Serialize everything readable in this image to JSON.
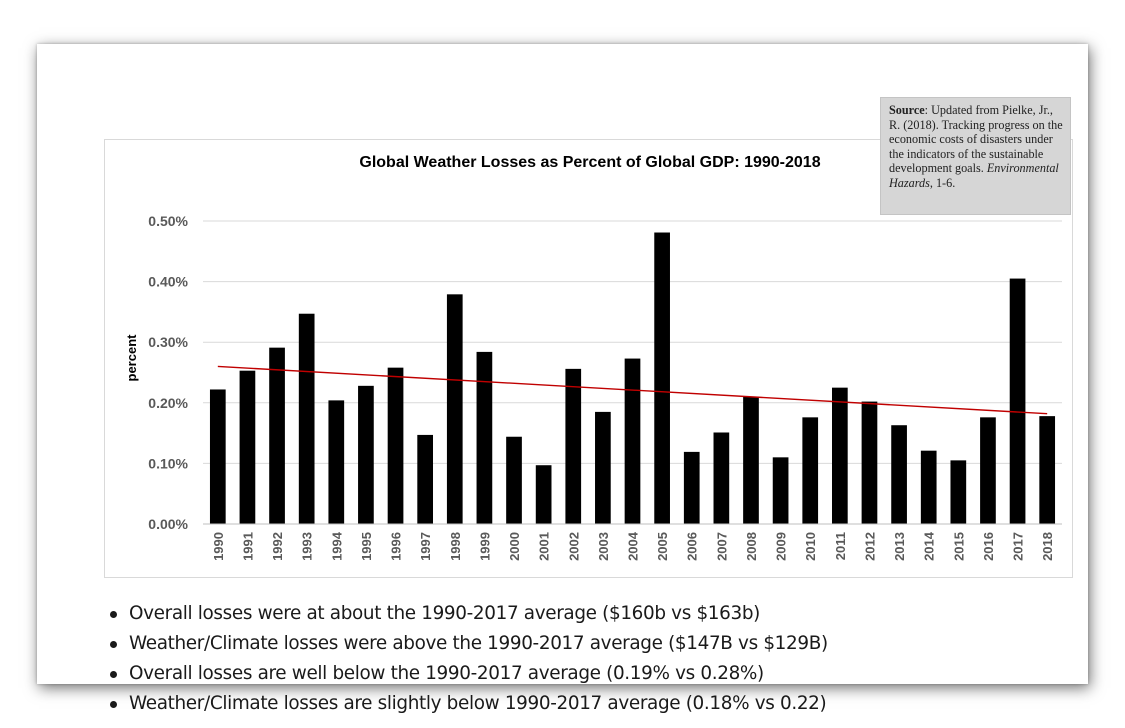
{
  "chart_data": {
    "type": "bar",
    "title": "Global Weather Losses as Percent of Global GDP: 1990-2018",
    "ylabel": "percent",
    "xlabel": "",
    "ylim": [
      0,
      0.5
    ],
    "ytick_labels": [
      "0.00%",
      "0.10%",
      "0.20%",
      "0.30%",
      "0.40%",
      "0.50%"
    ],
    "grid": true,
    "bar_color": "#000000",
    "trendline_color": "#c00000",
    "categories": [
      "1990",
      "1991",
      "1992",
      "1993",
      "1994",
      "1995",
      "1996",
      "1997",
      "1998",
      "1999",
      "2000",
      "2001",
      "2002",
      "2003",
      "2004",
      "2005",
      "2006",
      "2007",
      "2008",
      "2009",
      "2010",
      "2011",
      "2012",
      "2013",
      "2014",
      "2015",
      "2016",
      "2017",
      "2018"
    ],
    "values": [
      0.222,
      0.253,
      0.291,
      0.347,
      0.204,
      0.228,
      0.258,
      0.147,
      0.379,
      0.284,
      0.144,
      0.097,
      0.256,
      0.185,
      0.273,
      0.481,
      0.119,
      0.151,
      0.21,
      0.11,
      0.176,
      0.225,
      0.202,
      0.163,
      0.121,
      0.105,
      0.176,
      0.405,
      0.178
    ],
    "trendline": {
      "start": 0.26,
      "end": 0.182
    }
  },
  "source": {
    "label": "Source",
    "text_before": ": Updated from Pielke, Jr., R. (2018). Tracking progress on the economic costs of disasters under the indicators of the sustainable development goals. ",
    "journal": "Environmental Hazards",
    "text_after": ", 1-6."
  },
  "bullets": [
    "Overall losses were at about the 1990-2017 average ($160b vs $163b)",
    "Weather/Climate losses were above the 1990-2017 average ($147B vs $129B)",
    "Overall losses are well below the 1990-2017 average (0.19% vs 0.28%)",
    "Weather/Climate losses are slightly below 1990-2017 average (0.18% vs 0.22)"
  ]
}
